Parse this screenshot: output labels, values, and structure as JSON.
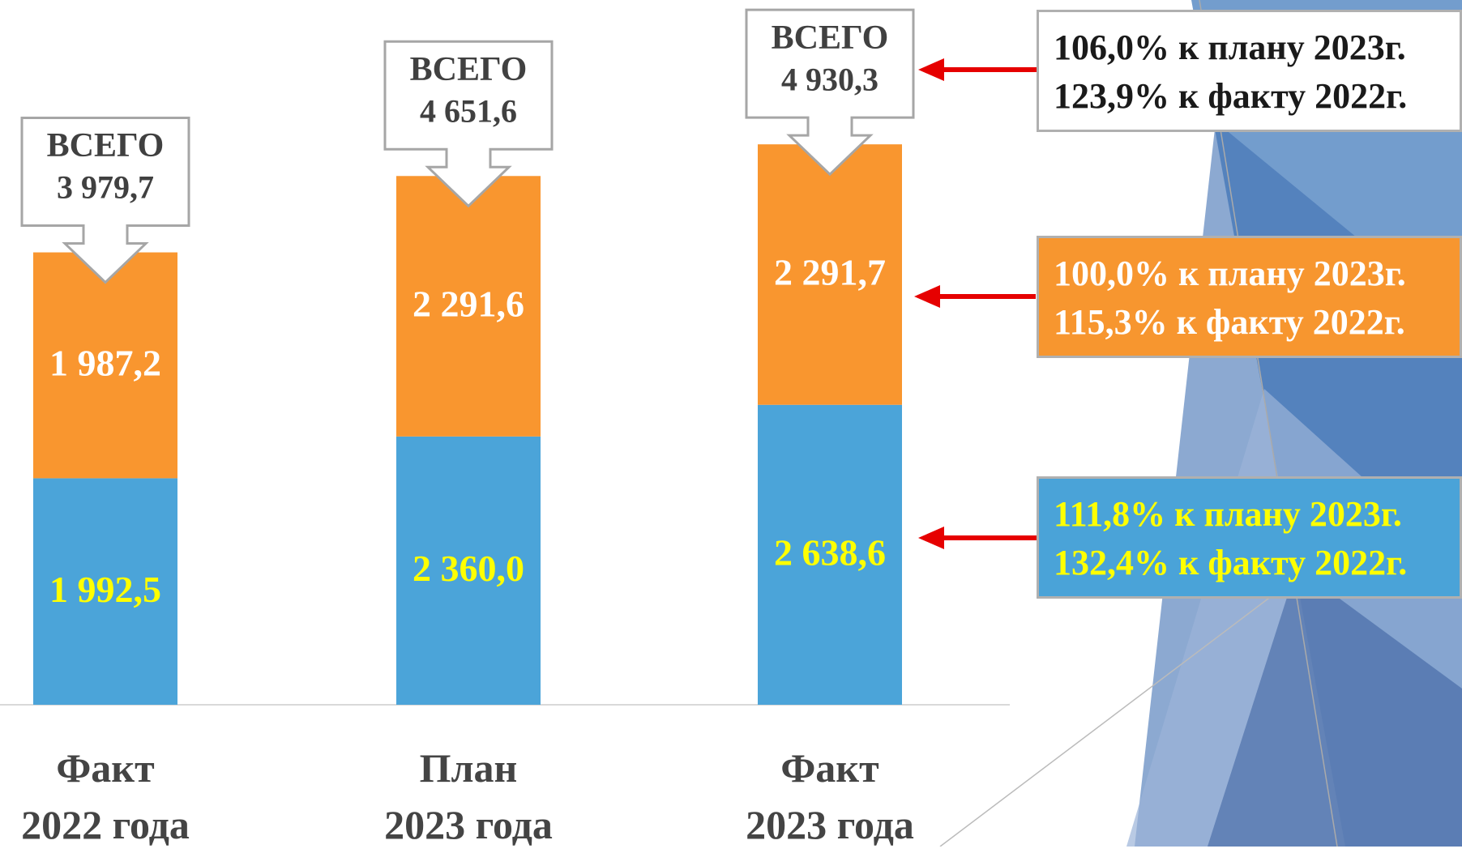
{
  "chart_data": {
    "type": "stacked-bar",
    "categories": [
      "Факт\n2022 года",
      "План\n2023 года",
      "Факт\n2023 года"
    ],
    "series": [
      {
        "color": "#4ba4d9",
        "values": [
          1992.5,
          2360.0,
          2638.6
        ],
        "value_labels": [
          "1 992,5",
          "2 360,0",
          "2 638,6"
        ],
        "label_color": "#ffff00"
      },
      {
        "color": "#f9962f",
        "values": [
          1987.2,
          2291.6,
          2291.7
        ],
        "value_labels": [
          "1 987,2",
          "2 291,6",
          "2 291,7"
        ],
        "label_color": "#ffffff"
      }
    ],
    "totals": {
      "label": "ВСЕГО",
      "values": [
        3979.7,
        4651.6,
        4930.3
      ],
      "value_labels": [
        "3 979,7",
        "4 651,6",
        "4 930,3"
      ]
    },
    "ylim": [
      0,
      6200
    ],
    "annotations": [
      {
        "lines": [
          "106,0% к плану 2023г.",
          "123,9% к факту 2022г."
        ]
      },
      {
        "lines": [
          "100,0% к плану 2023г.",
          "115,3% к факту 2022г."
        ]
      },
      {
        "lines": [
          "111,8% к плану 2023г.",
          "132,4% к факту 2022г."
        ]
      }
    ]
  }
}
